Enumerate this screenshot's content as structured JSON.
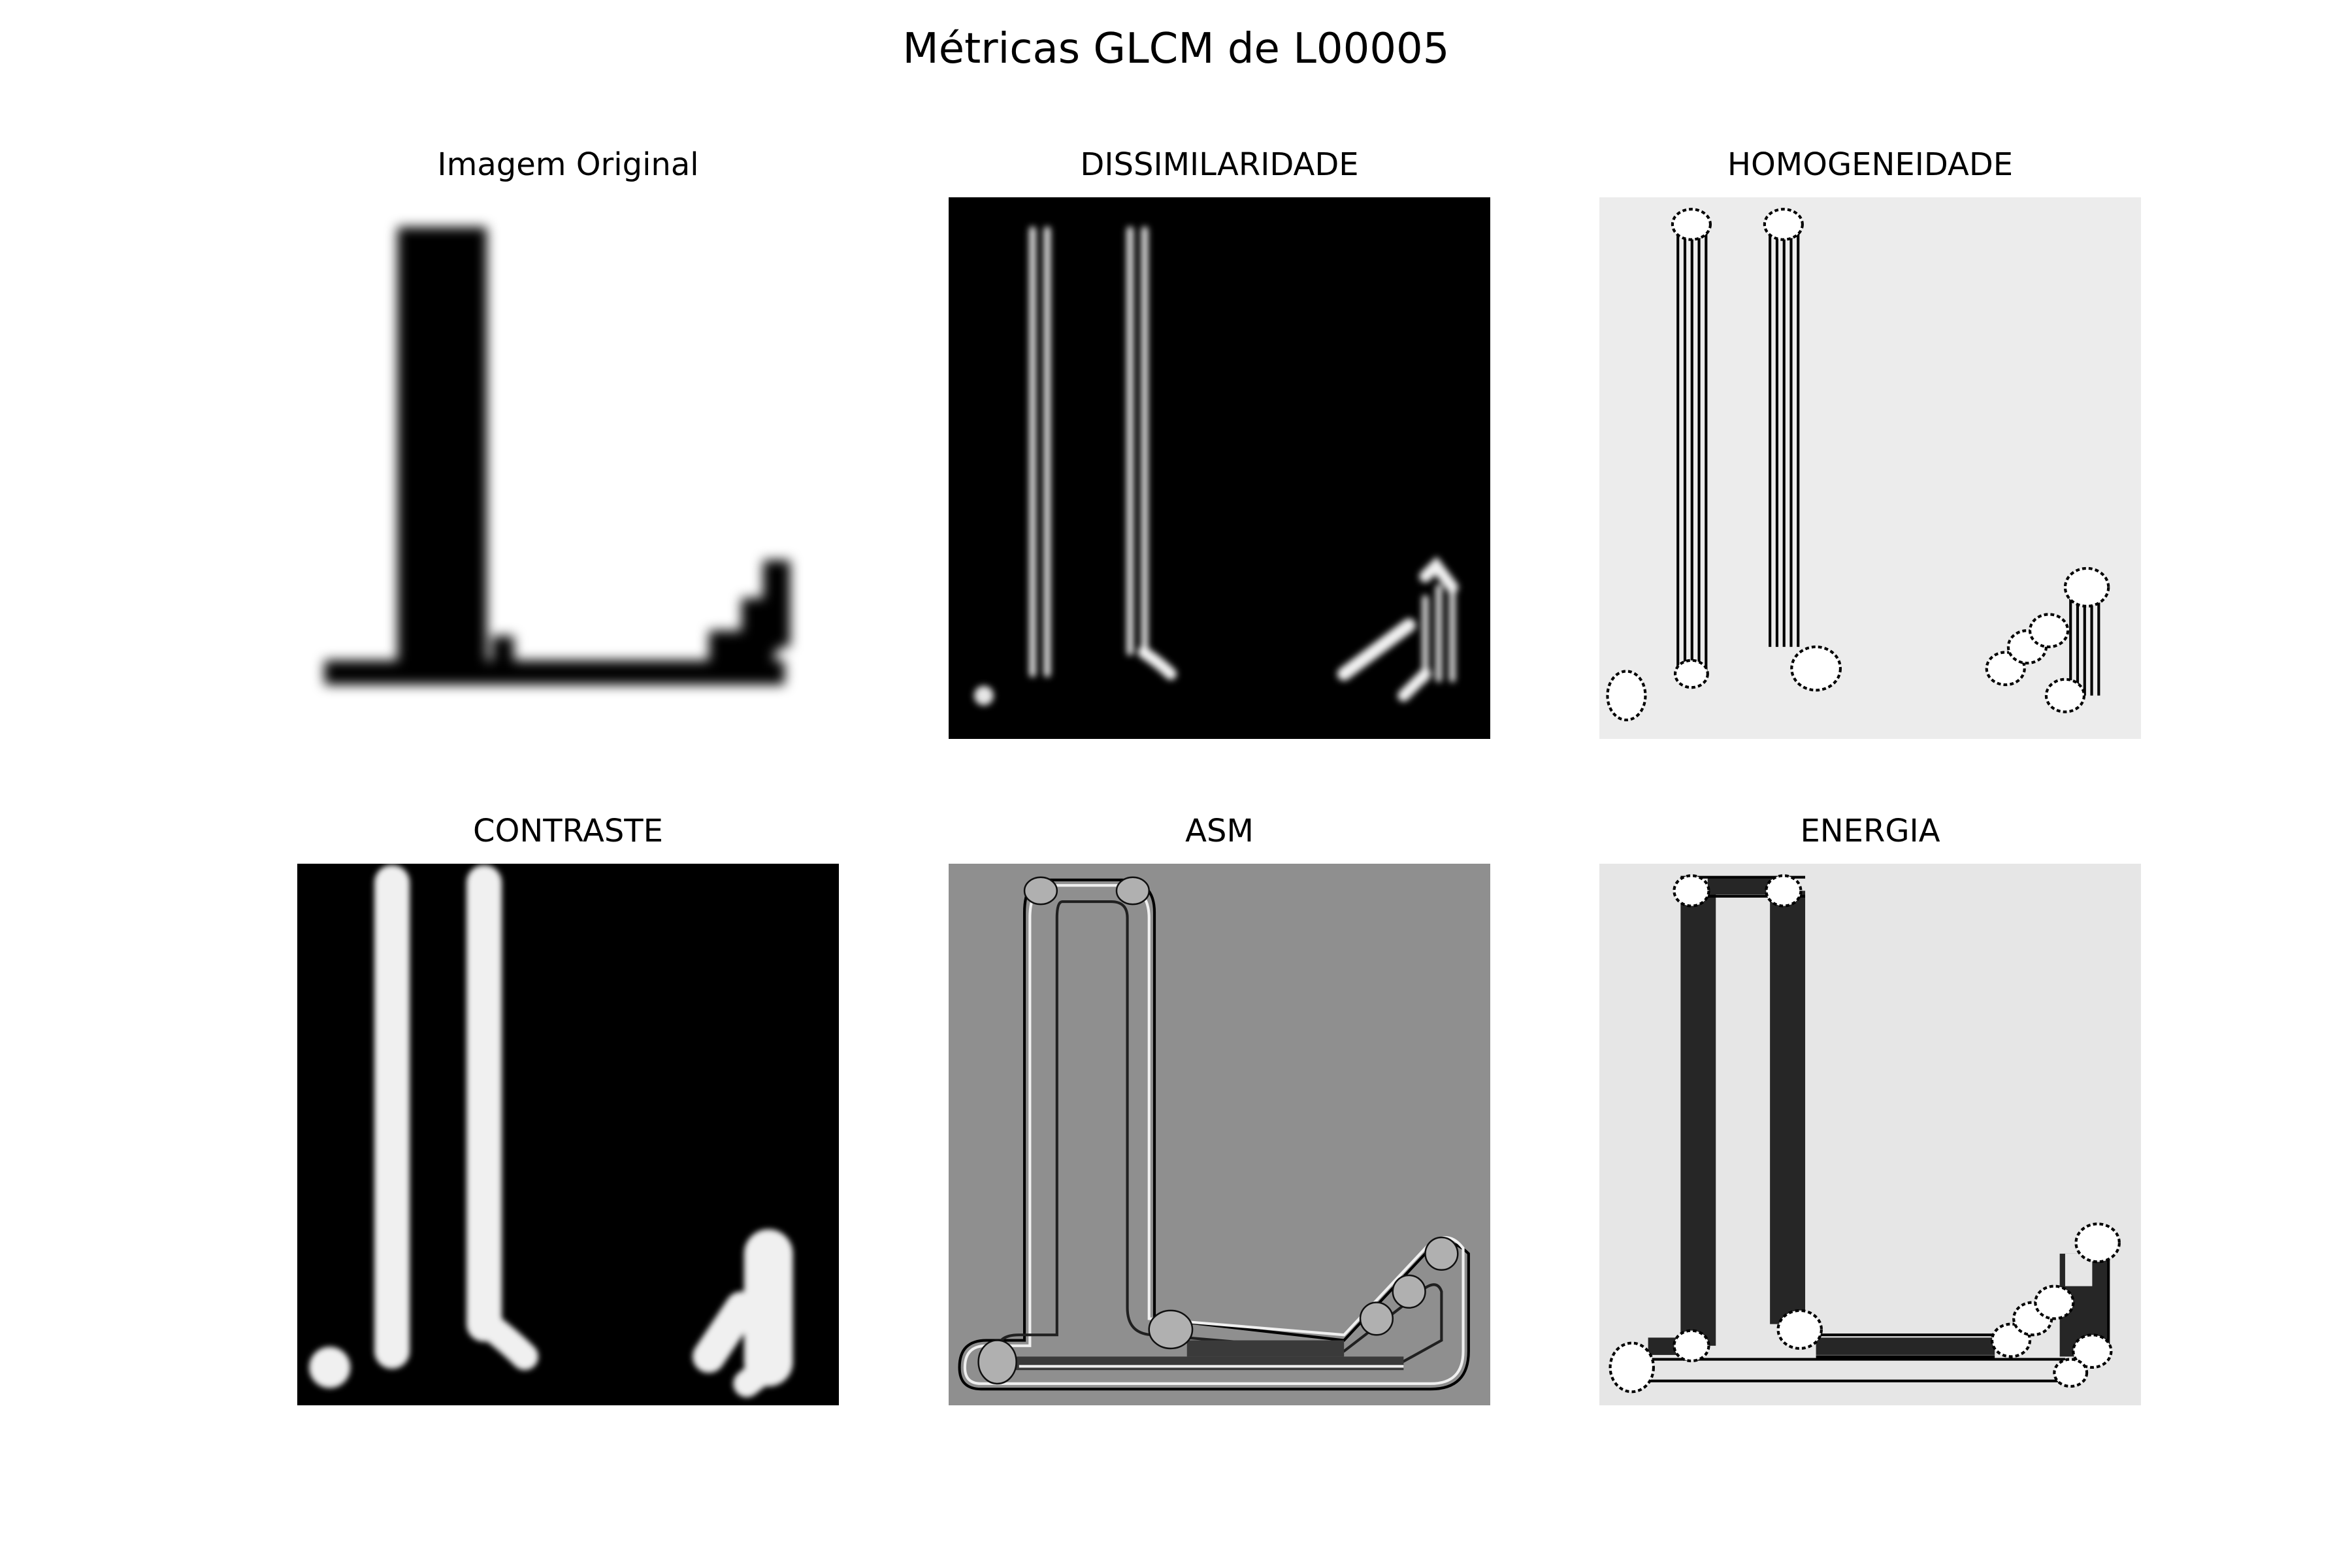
{
  "figure": {
    "title": "Métricas GLCM de L00005"
  },
  "panels": [
    {
      "title": "Imagem Original",
      "background": "#ffffff"
    },
    {
      "title": "DISSIMILARIDADE",
      "background": "#000000"
    },
    {
      "title": "HOMOGENEIDADE",
      "background": "#ececec"
    },
    {
      "title": "CONTRASTE",
      "background": "#000000"
    },
    {
      "title": "ASM",
      "background": "#8f8f8f"
    },
    {
      "title": "ENERGIA",
      "background": "#e6e6e6"
    }
  ]
}
